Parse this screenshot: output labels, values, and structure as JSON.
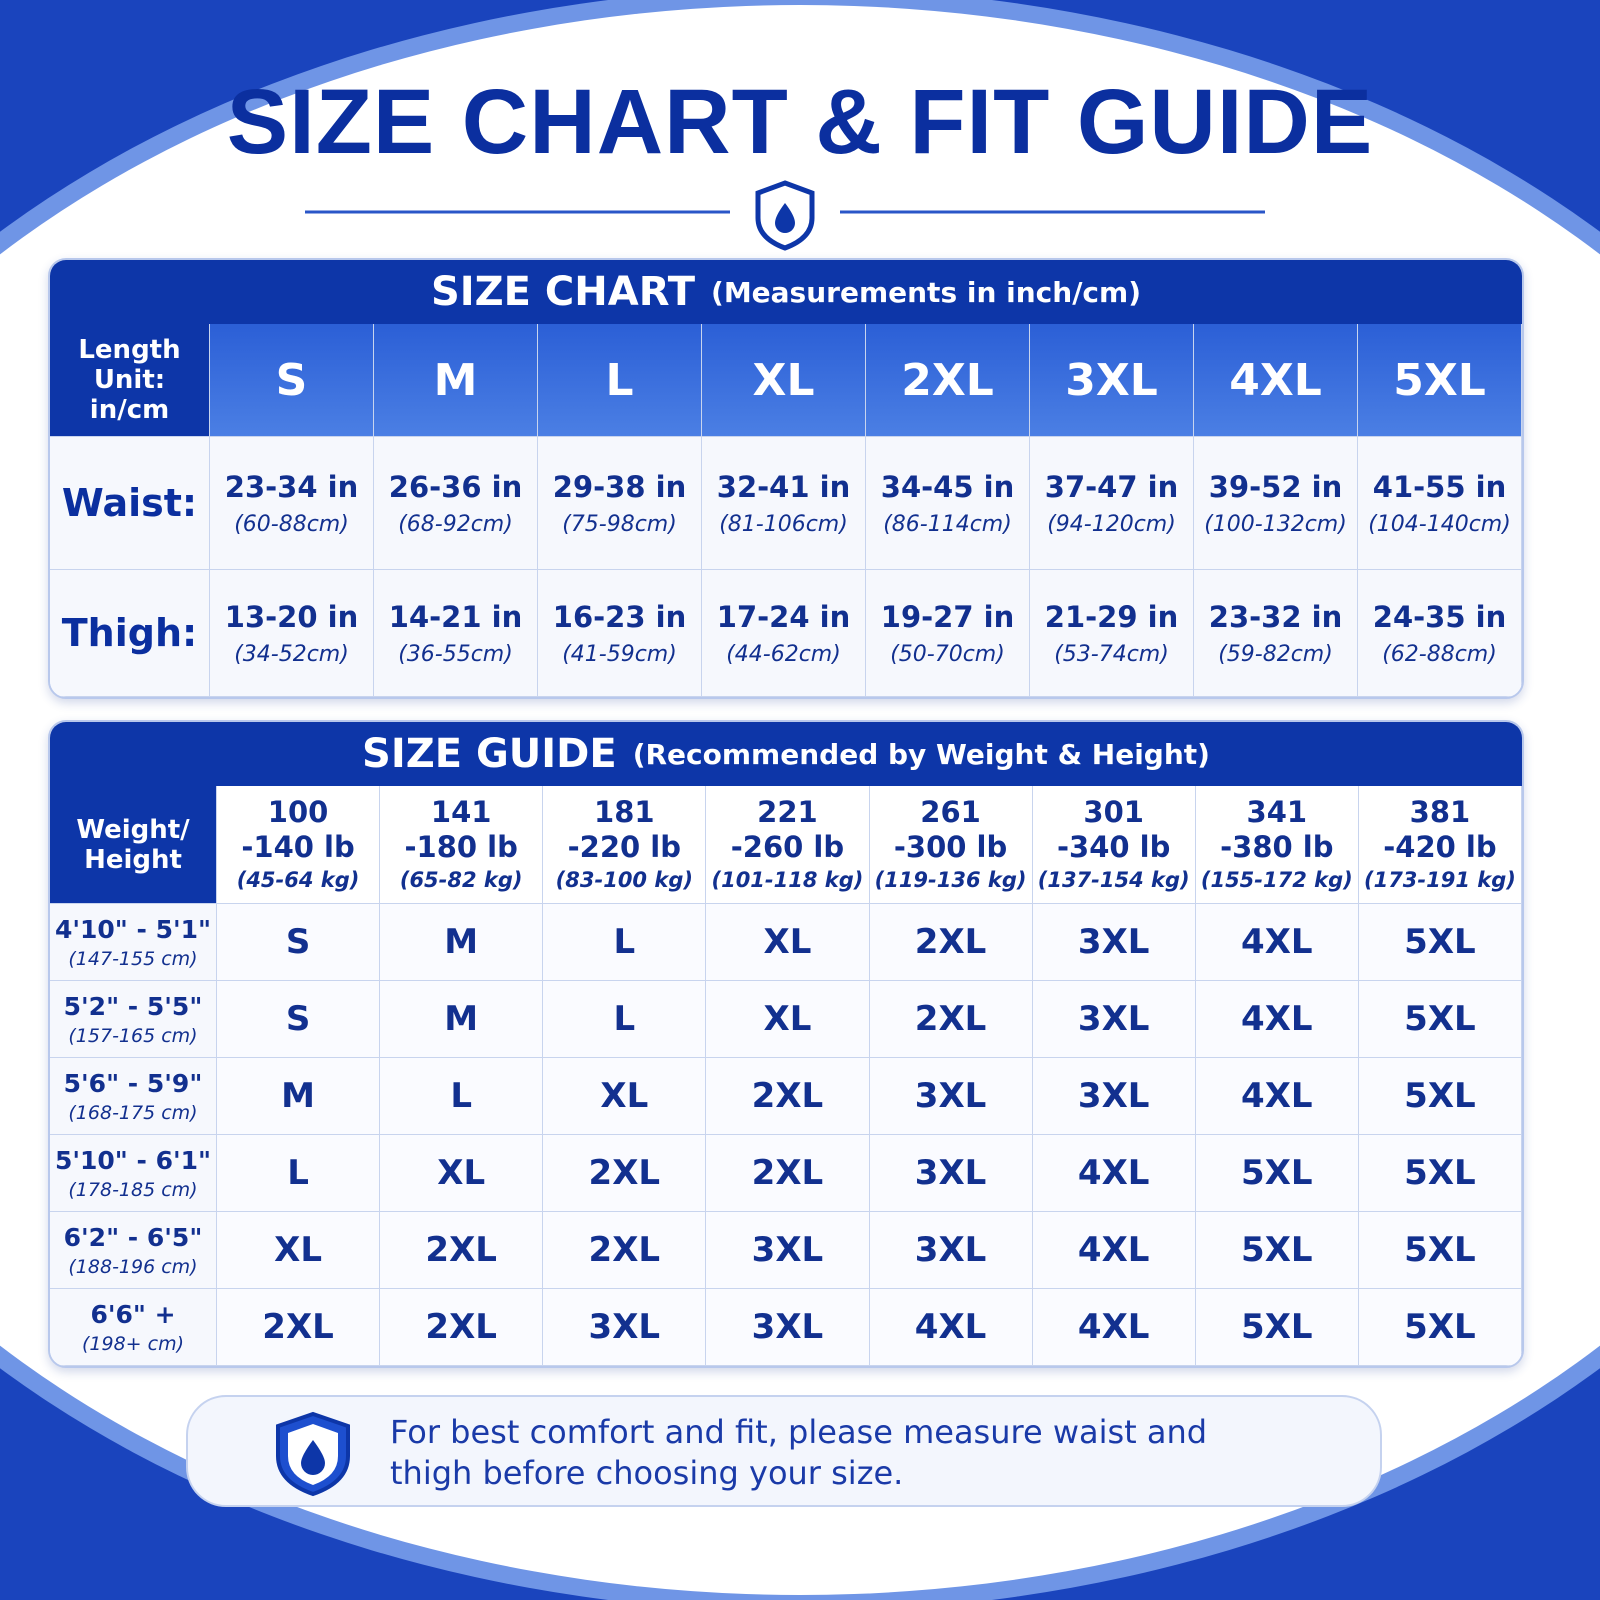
{
  "title": "SIZE CHART & FIT GUIDE",
  "size_chart": {
    "title": "SIZE CHART",
    "subtitle": "(Measurements in inch/cm)",
    "corner": "Length Unit: in/cm",
    "sizes": [
      "S",
      "M",
      "L",
      "XL",
      "2XL",
      "3XL",
      "4XL",
      "5XL"
    ],
    "rows": [
      {
        "label": "Waist:",
        "cells": [
          {
            "main": "23-34 in",
            "sub": "(60-88cm)"
          },
          {
            "main": "26-36 in",
            "sub": "(68-92cm)"
          },
          {
            "main": "29-38 in",
            "sub": "(75-98cm)"
          },
          {
            "main": "32-41 in",
            "sub": "(81-106cm)"
          },
          {
            "main": "34-45 in",
            "sub": "(86-114cm)"
          },
          {
            "main": "37-47 in",
            "sub": "(94-120cm)"
          },
          {
            "main": "39-52 in",
            "sub": "(100-132cm)"
          },
          {
            "main": "41-55 in",
            "sub": "(104-140cm)"
          }
        ]
      },
      {
        "label": "Thigh:",
        "cells": [
          {
            "main": "13-20 in",
            "sub": "(34-52cm)"
          },
          {
            "main": "14-21 in",
            "sub": "(36-55cm)"
          },
          {
            "main": "16-23 in",
            "sub": "(41-59cm)"
          },
          {
            "main": "17-24 in",
            "sub": "(44-62cm)"
          },
          {
            "main": "19-27 in",
            "sub": "(50-70cm)"
          },
          {
            "main": "21-29 in",
            "sub": "(53-74cm)"
          },
          {
            "main": "23-32 in",
            "sub": "(59-82cm)"
          },
          {
            "main": "24-35 in",
            "sub": "(62-88cm)"
          }
        ]
      }
    ]
  },
  "size_guide": {
    "title": "SIZE GUIDE",
    "subtitle": "(Recommended by Weight & Height)",
    "corner": "Weight/ Height",
    "columns": [
      {
        "line1": "100",
        "line2": "-140 lb",
        "sub": "(45-64 kg)"
      },
      {
        "line1": "141",
        "line2": "-180 lb",
        "sub": "(65-82 kg)"
      },
      {
        "line1": "181",
        "line2": "-220 lb",
        "sub": "(83-100 kg)"
      },
      {
        "line1": "221",
        "line2": "-260 lb",
        "sub": "(101-118 kg)"
      },
      {
        "line1": "261",
        "line2": "-300 lb",
        "sub": "(119-136 kg)"
      },
      {
        "line1": "301",
        "line2": "-340 lb",
        "sub": "(137-154 kg)"
      },
      {
        "line1": "341",
        "line2": "-380 lb",
        "sub": "(155-172 kg)"
      },
      {
        "line1": "381",
        "line2": "-420 lb",
        "sub": "(173-191 kg)"
      }
    ],
    "rows": [
      {
        "label": "4'10\" - 5'1\"",
        "sub": "(147-155 cm)",
        "cells": [
          "S",
          "M",
          "L",
          "XL",
          "2XL",
          "3XL",
          "4XL",
          "5XL"
        ]
      },
      {
        "label": "5'2\" - 5'5\"",
        "sub": "(157-165 cm)",
        "cells": [
          "S",
          "M",
          "L",
          "XL",
          "2XL",
          "3XL",
          "4XL",
          "5XL"
        ]
      },
      {
        "label": "5'6\" - 5'9\"",
        "sub": "(168-175 cm)",
        "cells": [
          "M",
          "L",
          "XL",
          "2XL",
          "3XL",
          "3XL",
          "4XL",
          "5XL"
        ]
      },
      {
        "label": "5'10\" - 6'1\"",
        "sub": "(178-185 cm)",
        "cells": [
          "L",
          "XL",
          "2XL",
          "2XL",
          "3XL",
          "4XL",
          "5XL",
          "5XL"
        ]
      },
      {
        "label": "6'2\" - 6'5\"",
        "sub": "(188-196 cm)",
        "cells": [
          "XL",
          "2XL",
          "2XL",
          "3XL",
          "3XL",
          "4XL",
          "5XL",
          "5XL"
        ]
      },
      {
        "label": "6'6\" +",
        "sub": "(198+ cm)",
        "cells": [
          "2XL",
          "2XL",
          "3XL",
          "3XL",
          "4XL",
          "4XL",
          "5XL",
          "5XL"
        ]
      }
    ]
  },
  "note": "For best comfort and fit, please measure waist and thigh before choosing your size."
}
